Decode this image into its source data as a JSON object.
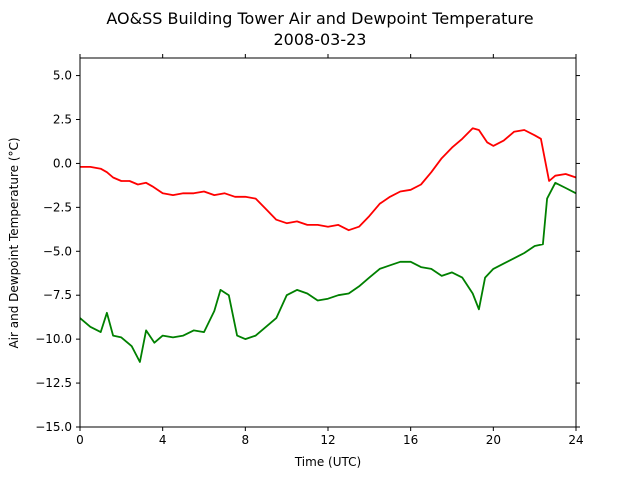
{
  "chart_data": {
    "type": "line",
    "title": "AO&SS Building Tower Air and Dewpoint Temperature",
    "subtitle": "2008-03-23",
    "xlabel": "Time (UTC)",
    "ylabel": "Air and Dewpoint Temperature (°C)",
    "xlim": [
      0,
      24
    ],
    "ylim": [
      -15.0,
      6.0
    ],
    "x_ticks": [
      "0",
      "4",
      "8",
      "12",
      "16",
      "20",
      "24"
    ],
    "y_ticks": [
      "5.0",
      "2.5",
      "0.0",
      "−2.5",
      "−5.0",
      "−7.5",
      "−10.0",
      "−12.5",
      "−15.0"
    ],
    "grid": false,
    "legend": "none",
    "series": [
      {
        "color": "#ff0000",
        "x": [
          0,
          0.5,
          1.0,
          1.3,
          1.6,
          2.0,
          2.4,
          2.8,
          3.2,
          3.5,
          4.0,
          4.5,
          5.0,
          5.5,
          6.0,
          6.5,
          7.0,
          7.5,
          8.0,
          8.5,
          9.0,
          9.5,
          10.0,
          10.5,
          11.0,
          11.5,
          12.0,
          12.5,
          13.0,
          13.5,
          14.0,
          14.5,
          15.0,
          15.5,
          16.0,
          16.5,
          17.0,
          17.5,
          18.0,
          18.5,
          19.0,
          19.3,
          19.7,
          20.0,
          20.5,
          21.0,
          21.5,
          22.0,
          22.3,
          22.5,
          22.7,
          23.0,
          23.5,
          24.0
        ],
        "y": [
          -0.2,
          -0.2,
          -0.3,
          -0.5,
          -0.8,
          -1.0,
          -1.0,
          -1.2,
          -1.1,
          -1.3,
          -1.7,
          -1.8,
          -1.7,
          -1.7,
          -1.6,
          -1.8,
          -1.7,
          -1.9,
          -1.9,
          -2.0,
          -2.6,
          -3.2,
          -3.4,
          -3.3,
          -3.5,
          -3.5,
          -3.6,
          -3.5,
          -3.8,
          -3.6,
          -3.0,
          -2.3,
          -1.9,
          -1.6,
          -1.5,
          -1.2,
          -0.5,
          0.3,
          0.9,
          1.4,
          2.0,
          1.9,
          1.2,
          1.0,
          1.3,
          1.8,
          1.9,
          1.6,
          1.4,
          0.2,
          -1.0,
          -0.7,
          -0.6,
          -0.8
        ]
      },
      {
        "color": "#008000",
        "x": [
          0,
          0.5,
          1.0,
          1.3,
          1.6,
          2.0,
          2.5,
          2.9,
          3.2,
          3.6,
          4.0,
          4.5,
          5.0,
          5.5,
          6.0,
          6.5,
          6.8,
          7.2,
          7.6,
          8.0,
          8.5,
          9.0,
          9.5,
          10.0,
          10.5,
          11.0,
          11.5,
          12.0,
          12.5,
          13.0,
          13.5,
          14.0,
          14.5,
          15.0,
          15.5,
          16.0,
          16.5,
          17.0,
          17.5,
          18.0,
          18.5,
          19.0,
          19.3,
          19.6,
          20.0,
          20.5,
          21.0,
          21.5,
          22.0,
          22.4,
          22.6,
          23.0,
          23.5,
          24.0
        ],
        "y": [
          -8.8,
          -9.3,
          -9.6,
          -8.5,
          -9.8,
          -9.9,
          -10.4,
          -11.3,
          -9.5,
          -10.2,
          -9.8,
          -9.9,
          -9.8,
          -9.5,
          -9.6,
          -8.4,
          -7.2,
          -7.5,
          -9.8,
          -10.0,
          -9.8,
          -9.3,
          -8.8,
          -7.5,
          -7.2,
          -7.4,
          -7.8,
          -7.7,
          -7.5,
          -7.4,
          -7.0,
          -6.5,
          -6.0,
          -5.8,
          -5.6,
          -5.6,
          -5.9,
          -6.0,
          -6.4,
          -6.2,
          -6.5,
          -7.4,
          -8.3,
          -6.5,
          -6.0,
          -5.7,
          -5.4,
          -5.1,
          -4.7,
          -4.6,
          -2.0,
          -1.1,
          -1.4,
          -1.7
        ]
      }
    ]
  }
}
